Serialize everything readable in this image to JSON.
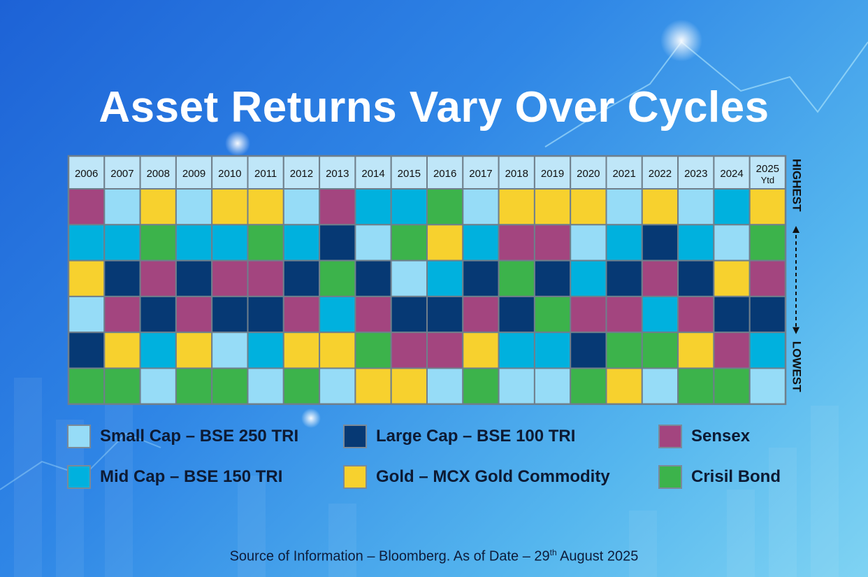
{
  "title": "Asset Returns Vary Over Cycles",
  "chart_data": {
    "type": "table",
    "title": "Asset Returns Vary Over Cycles",
    "years": [
      "2006",
      "2007",
      "2008",
      "2009",
      "2010",
      "2011",
      "2012",
      "2013",
      "2014",
      "2015",
      "2016",
      "2017",
      "2018",
      "2019",
      "2020",
      "2021",
      "2022",
      "2023",
      "2024",
      "2025"
    ],
    "last_year_sublabel": "Ytd",
    "rank_axis": {
      "top_label": "HIGHEST",
      "bottom_label": "LOWEST"
    },
    "assets": [
      {
        "key": "small",
        "name": "Small Cap – BSE 250 TRI",
        "color": "#96dcf7"
      },
      {
        "key": "large",
        "name": "Large Cap – BSE 100 TRI",
        "color": "#063974"
      },
      {
        "key": "sensex",
        "name": "Sensex",
        "color": "#a3457f"
      },
      {
        "key": "mid",
        "name": "Mid Cap – BSE 150 TRI",
        "color": "#00b1de"
      },
      {
        "key": "gold",
        "name": "Gold – MCX Gold Commodity",
        "color": "#f7d12e"
      },
      {
        "key": "bond",
        "name": "Crisil Bond",
        "color": "#3cb34b"
      }
    ],
    "rankings": [
      [
        "sensex",
        "mid",
        "gold",
        "small",
        "large",
        "bond"
      ],
      [
        "small",
        "mid",
        "large",
        "sensex",
        "gold",
        "bond"
      ],
      [
        "gold",
        "bond",
        "sensex",
        "large",
        "mid",
        "small"
      ],
      [
        "small",
        "mid",
        "large",
        "sensex",
        "gold",
        "bond"
      ],
      [
        "gold",
        "mid",
        "sensex",
        "large",
        "small",
        "bond"
      ],
      [
        "gold",
        "bond",
        "sensex",
        "large",
        "mid",
        "small"
      ],
      [
        "small",
        "mid",
        "large",
        "sensex",
        "gold",
        "bond"
      ],
      [
        "sensex",
        "large",
        "bond",
        "mid",
        "gold",
        "small"
      ],
      [
        "mid",
        "small",
        "large",
        "sensex",
        "bond",
        "gold"
      ],
      [
        "mid",
        "bond",
        "small",
        "large",
        "sensex",
        "gold"
      ],
      [
        "bond",
        "gold",
        "mid",
        "large",
        "sensex",
        "small"
      ],
      [
        "small",
        "mid",
        "large",
        "sensex",
        "gold",
        "bond"
      ],
      [
        "gold",
        "sensex",
        "bond",
        "large",
        "mid",
        "small"
      ],
      [
        "gold",
        "sensex",
        "large",
        "bond",
        "mid",
        "small"
      ],
      [
        "gold",
        "small",
        "mid",
        "sensex",
        "large",
        "bond"
      ],
      [
        "small",
        "mid",
        "large",
        "sensex",
        "bond",
        "gold"
      ],
      [
        "gold",
        "large",
        "sensex",
        "mid",
        "bond",
        "small"
      ],
      [
        "small",
        "mid",
        "large",
        "sensex",
        "gold",
        "bond"
      ],
      [
        "mid",
        "small",
        "gold",
        "large",
        "sensex",
        "bond"
      ],
      [
        "gold",
        "bond",
        "sensex",
        "large",
        "mid",
        "small"
      ]
    ]
  },
  "legend": [
    {
      "label": "Small Cap – BSE 250 TRI",
      "color": "#96dcf7"
    },
    {
      "label": "Large Cap – BSE 100 TRI",
      "color": "#063974"
    },
    {
      "label": "Sensex",
      "color": "#a3457f"
    },
    {
      "label": "Mid Cap – BSE 150 TRI",
      "color": "#00b1de"
    },
    {
      "label": "Gold – MCX Gold Commodity",
      "color": "#f7d12e"
    },
    {
      "label": "Crisil Bond",
      "color": "#3cb34b"
    }
  ],
  "source": {
    "prefix": "Source of Information – Bloomberg. As of Date – 29",
    "superscript": "th",
    "suffix": " August 2025"
  }
}
